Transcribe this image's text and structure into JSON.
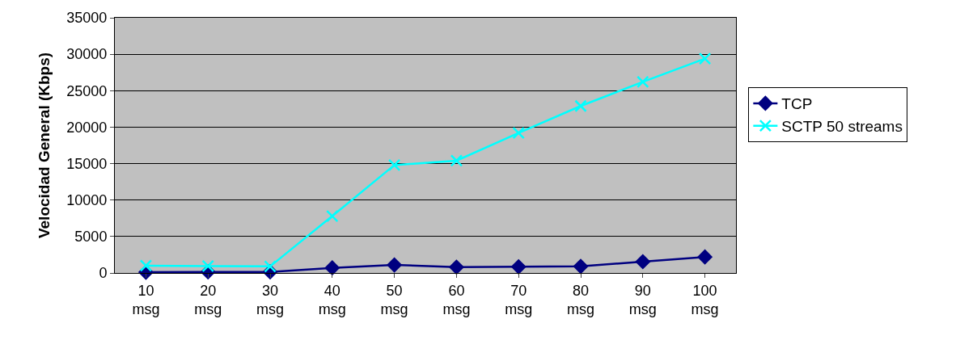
{
  "chart_data": {
    "type": "line",
    "ylabel": "Velocidad General (Kbps)",
    "categories": [
      "10\nmsg",
      "20\nmsg",
      "30\nmsg",
      "40\nmsg",
      "50\nmsg",
      "60\nmsg",
      "70\nmsg",
      "80\nmsg",
      "90\nmsg",
      "100\nmsg"
    ],
    "series": [
      {
        "name": "TCP",
        "color": "#000080",
        "marker": "diamond",
        "values": [
          100,
          150,
          150,
          700,
          1100,
          800,
          850,
          900,
          1550,
          2200
        ]
      },
      {
        "name": "SCTP 50 streams",
        "color": "#00ffff",
        "marker": "cross",
        "values": [
          1000,
          950,
          900,
          7800,
          14800,
          15400,
          19200,
          22900,
          26200,
          29400
        ]
      }
    ],
    "ylim": [
      0,
      35000
    ],
    "yticks": [
      0,
      5000,
      10000,
      15000,
      20000,
      25000,
      30000,
      35000
    ],
    "grid": "y",
    "legend": "right",
    "line_style": "solid"
  }
}
